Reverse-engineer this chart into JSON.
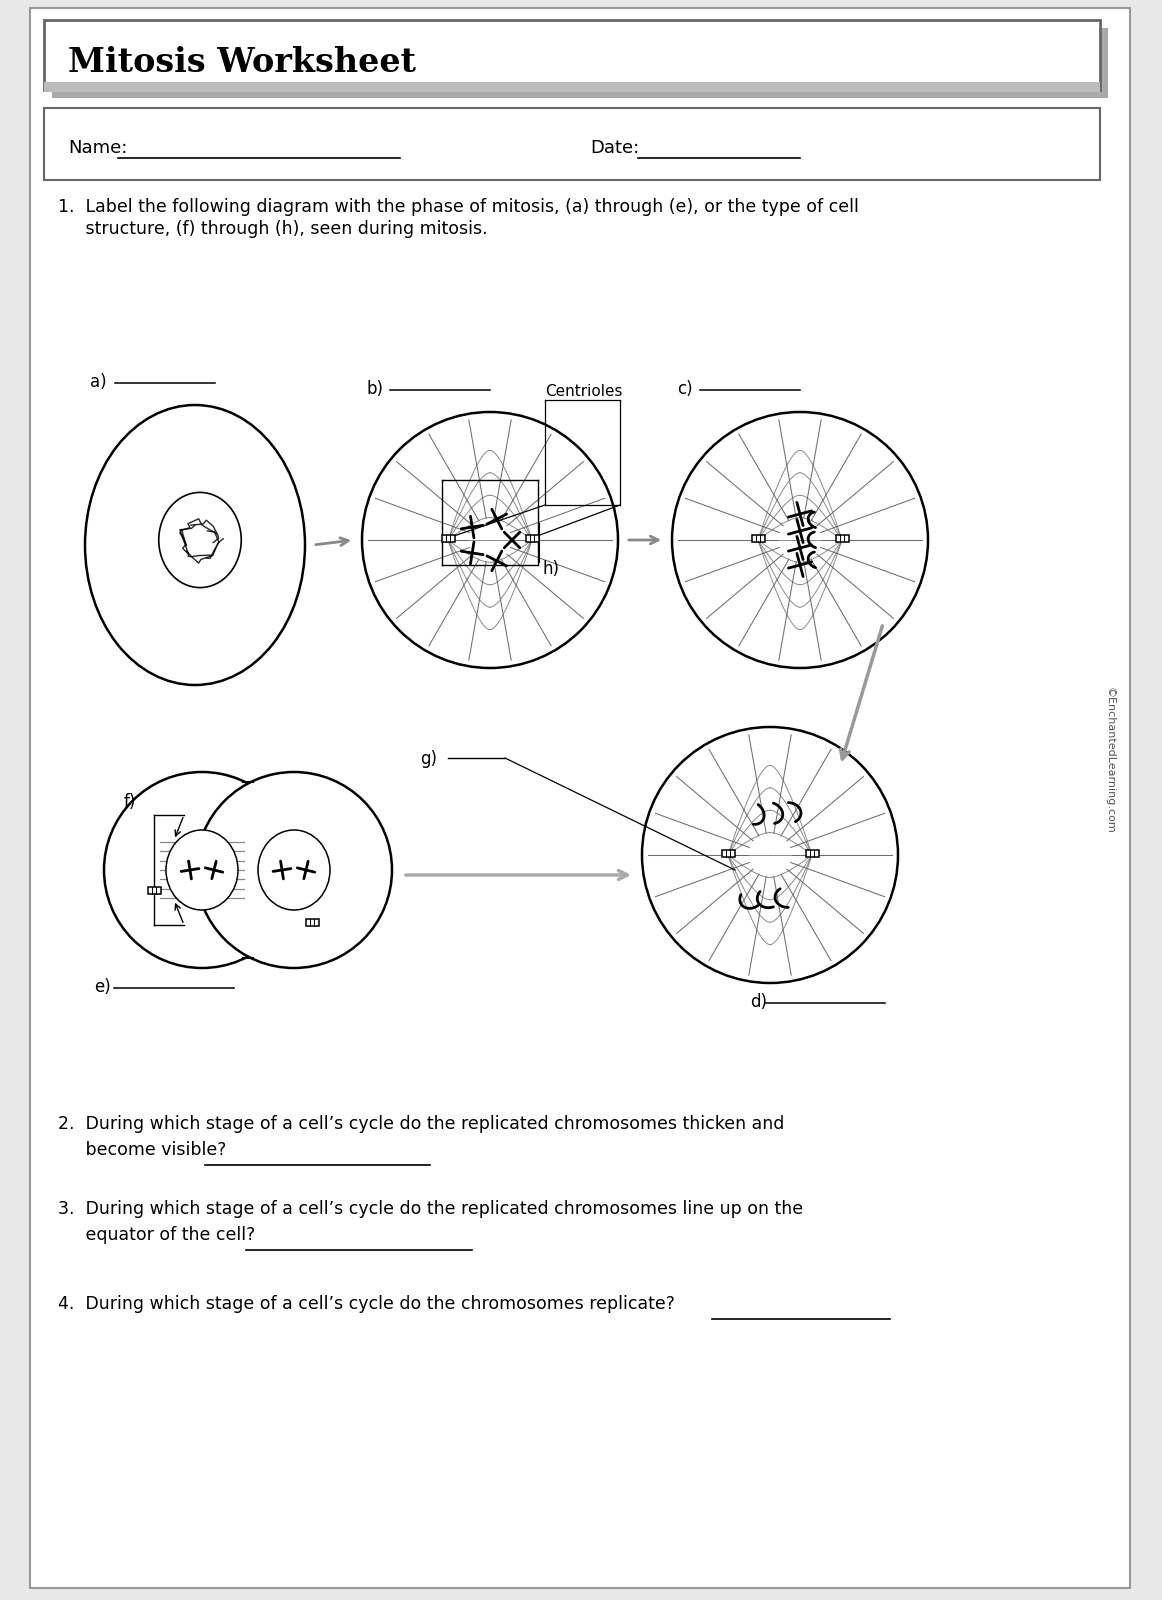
{
  "title": "Mitosis Worksheet",
  "name_label": "Name:",
  "date_label": "Date:",
  "q1_line1": "1.  Label the following diagram with the phase of mitosis, (a) through (e), or the type of cell",
  "q1_line2": "     structure, (f) through (h), seen during mitosis.",
  "q2_line1": "2.  During which stage of a cell’s cycle do the replicated chromosomes thicken and",
  "q2_line2": "     become visible?",
  "q3_line1": "3.  During which stage of a cell’s cycle do the replicated chromosomes line up on the",
  "q3_line2": "     equator of the cell?",
  "q4_line1": "4.  During which stage of a cell’s cycle do the chromosomes replicate?",
  "copyright": "©EnchantedLearning.com",
  "label_a": "a)",
  "label_b": "b)",
  "label_c": "c)",
  "label_d": "d)",
  "label_e": "e)",
  "label_f": "f)",
  "label_g": "g)",
  "label_h": "h)",
  "centrioles_text": "Centrioles"
}
